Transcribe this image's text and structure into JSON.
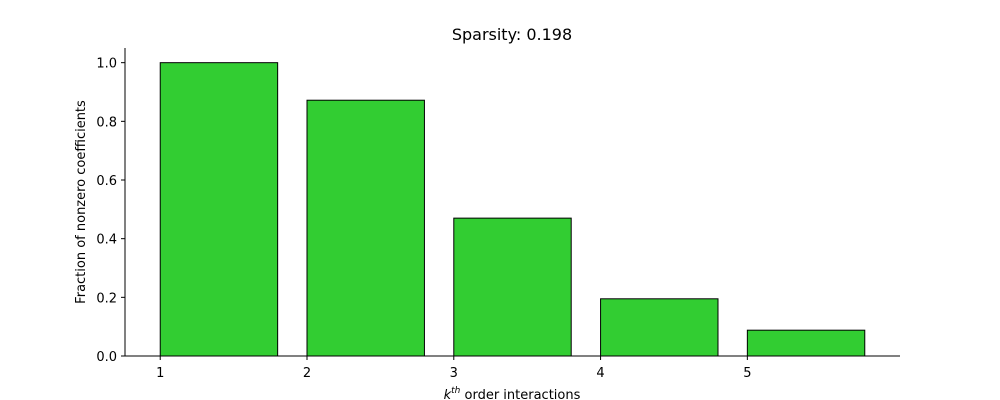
{
  "chart_data": {
    "type": "bar",
    "title": "Sparsity: 0.198",
    "x": [
      1,
      2,
      3,
      4,
      5
    ],
    "values": [
      1.0,
      0.872,
      0.47,
      0.195,
      0.088
    ],
    "bar_width": 0.8,
    "bar_align": "edge",
    "bar_color": "#32cd32",
    "bar_edge_color": "#000000",
    "xlabel_base": "k",
    "xlabel_sup": "th",
    "xlabel_rest": " order interactions",
    "ylabel": "Fraction of nonzero coefficients",
    "xlim": [
      0.76,
      6.04
    ],
    "ylim": [
      0,
      1.05
    ],
    "xticks": [
      "1",
      "2",
      "3",
      "4",
      "5"
    ],
    "yticks": [
      "0.0",
      "0.2",
      "0.4",
      "0.6",
      "0.8",
      "1.0"
    ],
    "grid": false,
    "spines": "left-bottom"
  }
}
